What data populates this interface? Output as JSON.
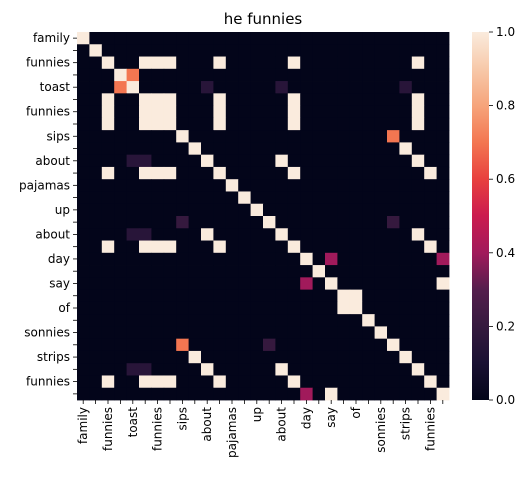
{
  "chart_data": {
    "type": "heatmap",
    "title": "he funnies",
    "row_labels": [
      "family",
      "",
      "funnies",
      "",
      "toast",
      "",
      "funnies",
      "",
      "sips",
      "",
      "about",
      "",
      "pajamas",
      "",
      "up",
      "",
      "about",
      "",
      "day",
      "",
      "say",
      "",
      "of",
      "",
      "sonnies",
      "",
      "strips",
      "",
      "funnies",
      ""
    ],
    "col_labels": [
      "family",
      "",
      "funnies",
      "",
      "toast",
      "",
      "funnies",
      "",
      "sips",
      "",
      "about",
      "",
      "pajamas",
      "",
      "up",
      "",
      "about",
      "",
      "day",
      "",
      "say",
      "",
      "of",
      "",
      "sonnies",
      "",
      "strips",
      "",
      "funnies",
      ""
    ],
    "colorbar": {
      "ticks": [
        0.0,
        0.2,
        0.4,
        0.6,
        0.8,
        1.0
      ],
      "tick_labels": [
        "0.0",
        "0.2",
        "0.4",
        "0.6",
        "0.8",
        "1.0"
      ],
      "range": [
        0,
        1
      ]
    },
    "matrix": [
      [
        1,
        0,
        0,
        0,
        0,
        0,
        0,
        0,
        0,
        0,
        0,
        0,
        0,
        0,
        0,
        0,
        0,
        0,
        0,
        0,
        0,
        0,
        0,
        0,
        0,
        0,
        0,
        0,
        0,
        0
      ],
      [
        0,
        1,
        0,
        0,
        0,
        0,
        0,
        0,
        0,
        0,
        0,
        0,
        0,
        0,
        0,
        0,
        0,
        0,
        0,
        0,
        0,
        0,
        0,
        0,
        0,
        0,
        0,
        0,
        0,
        0
      ],
      [
        0,
        0,
        1,
        0,
        0,
        1,
        1,
        1,
        0,
        0,
        0,
        1,
        0,
        0,
        0,
        0,
        0,
        1,
        0,
        0,
        0,
        0,
        0,
        0,
        0,
        0,
        0,
        1,
        0,
        0
      ],
      [
        0,
        0,
        0,
        1,
        0.7,
        0,
        0,
        0,
        0,
        0,
        0,
        0,
        0,
        0,
        0,
        0,
        0,
        0,
        0,
        0,
        0,
        0,
        0,
        0,
        0,
        0,
        0,
        0,
        0,
        0
      ],
      [
        0,
        0,
        0,
        0.7,
        1,
        0,
        0,
        0,
        0,
        0,
        0.15,
        0,
        0,
        0,
        0,
        0,
        0.15,
        0,
        0,
        0,
        0,
        0,
        0,
        0,
        0,
        0,
        0.15,
        0,
        0,
        0
      ],
      [
        0,
        0,
        1,
        0,
        0,
        1,
        1,
        1,
        0,
        0,
        0,
        1,
        0,
        0,
        0,
        0,
        0,
        1,
        0,
        0,
        0,
        0,
        0,
        0,
        0,
        0,
        0,
        1,
        0,
        0
      ],
      [
        0,
        0,
        1,
        0,
        0,
        1,
        1,
        1,
        0,
        0,
        0,
        1,
        0,
        0,
        0,
        0,
        0,
        1,
        0,
        0,
        0,
        0,
        0,
        0,
        0,
        0,
        0,
        1,
        0,
        0
      ],
      [
        0,
        0,
        1,
        0,
        0,
        1,
        1,
        1,
        0,
        0,
        0,
        1,
        0,
        0,
        0,
        0,
        0,
        1,
        0,
        0,
        0,
        0,
        0,
        0,
        0,
        0,
        0,
        1,
        0,
        0
      ],
      [
        0,
        0,
        0,
        0,
        0,
        0,
        0,
        0,
        1,
        0,
        0,
        0,
        0,
        0,
        0,
        0,
        0,
        0,
        0,
        0,
        0,
        0,
        0,
        0,
        0,
        0.7,
        0,
        0,
        0,
        0
      ],
      [
        0,
        0,
        0,
        0,
        0,
        0,
        0,
        0,
        0,
        1,
        0,
        0,
        0,
        0,
        0,
        0,
        0,
        0,
        0,
        0,
        0,
        0,
        0,
        0,
        0,
        0,
        1,
        0,
        0,
        0
      ],
      [
        0,
        0,
        0,
        0,
        0.15,
        0.15,
        0,
        0,
        0,
        0,
        1,
        0,
        0,
        0,
        0,
        0,
        1,
        0,
        0,
        0,
        0,
        0,
        0,
        0,
        0,
        0,
        0,
        1,
        0,
        0
      ],
      [
        0,
        0,
        1,
        0,
        0,
        1,
        1,
        1,
        0,
        0,
        0,
        1,
        0,
        0,
        0,
        0,
        0,
        1,
        0,
        0,
        0,
        0,
        0,
        0,
        0,
        0,
        0,
        0,
        1,
        0
      ],
      [
        0,
        0,
        0,
        0,
        0,
        0,
        0,
        0,
        0,
        0,
        0,
        0,
        1,
        0,
        0,
        0,
        0,
        0,
        0,
        0,
        0,
        0,
        0,
        0,
        0,
        0,
        0,
        0,
        0,
        0
      ],
      [
        0,
        0,
        0,
        0,
        0,
        0,
        0,
        0,
        0,
        0,
        0,
        0,
        0,
        1,
        0,
        0,
        0,
        0,
        0,
        0,
        0,
        0,
        0,
        0,
        0,
        0,
        0,
        0,
        0,
        0
      ],
      [
        0,
        0,
        0,
        0,
        0,
        0,
        0,
        0,
        0,
        0,
        0,
        0,
        0,
        0,
        1,
        0,
        0,
        0,
        0,
        0,
        0,
        0,
        0,
        0,
        0,
        0,
        0,
        0,
        0,
        0
      ],
      [
        0,
        0,
        0,
        0,
        0,
        0,
        0,
        0,
        0.2,
        0,
        0,
        0,
        0,
        0,
        0,
        1,
        0,
        0,
        0,
        0,
        0,
        0,
        0,
        0,
        0,
        0.2,
        0,
        0,
        0,
        0
      ],
      [
        0,
        0,
        0,
        0,
        0.15,
        0.15,
        0,
        0,
        0,
        0,
        1,
        0,
        0,
        0,
        0,
        0,
        1,
        0,
        0,
        0,
        0,
        0,
        0,
        0,
        0,
        0,
        0,
        1,
        0,
        0
      ],
      [
        0,
        0,
        1,
        0,
        0,
        1,
        1,
        1,
        0,
        0,
        0,
        1,
        0,
        0,
        0,
        0,
        0,
        1,
        0,
        0,
        0,
        0,
        0,
        0,
        0,
        0,
        0,
        0,
        1,
        0
      ],
      [
        0,
        0,
        0,
        0,
        0,
        0,
        0,
        0,
        0,
        0,
        0,
        0,
        0,
        0,
        0,
        0,
        0,
        0,
        1,
        0,
        0.4,
        0,
        0,
        0,
        0,
        0,
        0,
        0,
        0,
        0.4
      ],
      [
        0,
        0,
        0,
        0,
        0,
        0,
        0,
        0,
        0,
        0,
        0,
        0,
        0,
        0,
        0,
        0,
        0,
        0,
        0,
        1,
        0,
        0,
        0,
        0,
        0,
        0,
        0,
        0,
        0,
        0
      ],
      [
        0,
        0,
        0,
        0,
        0,
        0,
        0,
        0,
        0,
        0,
        0,
        0,
        0,
        0,
        0,
        0,
        0,
        0,
        0.4,
        0,
        1,
        0,
        0,
        0,
        0,
        0,
        0,
        0,
        0,
        1
      ],
      [
        0,
        0,
        0,
        0,
        0,
        0,
        0,
        0,
        0,
        0,
        0,
        0,
        0,
        0,
        0,
        0,
        0,
        0,
        0,
        0,
        0,
        1,
        1,
        0,
        0,
        0,
        0,
        0,
        0,
        0
      ],
      [
        0,
        0,
        0,
        0,
        0,
        0,
        0,
        0,
        0,
        0,
        0,
        0,
        0,
        0,
        0,
        0,
        0,
        0,
        0,
        0,
        0,
        1,
        1,
        0,
        0,
        0,
        0,
        0,
        0,
        0
      ],
      [
        0,
        0,
        0,
        0,
        0,
        0,
        0,
        0,
        0,
        0,
        0,
        0,
        0,
        0,
        0,
        0,
        0,
        0,
        0,
        0,
        0,
        0,
        0,
        1,
        0,
        0,
        0,
        0,
        0,
        0
      ],
      [
        0,
        0,
        0,
        0,
        0,
        0,
        0,
        0,
        0,
        0,
        0,
        0,
        0,
        0,
        0,
        0,
        0,
        0,
        0,
        0,
        0,
        0,
        0,
        0,
        1,
        0,
        0,
        0,
        0,
        0
      ],
      [
        0,
        0,
        0,
        0,
        0,
        0,
        0,
        0,
        0.7,
        0,
        0,
        0,
        0,
        0,
        0,
        0.2,
        0,
        0,
        0,
        0,
        0,
        0,
        0,
        0,
        0,
        1,
        0,
        0,
        0,
        0
      ],
      [
        0,
        0,
        0,
        0,
        0,
        0,
        0,
        0,
        0,
        1,
        0,
        0,
        0,
        0,
        0,
        0,
        0,
        0,
        0,
        0,
        0,
        0,
        0,
        0,
        0,
        0,
        1,
        0,
        0,
        0
      ],
      [
        0,
        0,
        0,
        0,
        0.15,
        0.15,
        0,
        0,
        0,
        0,
        1,
        0,
        0,
        0,
        0,
        0,
        1,
        0,
        0,
        0,
        0,
        0,
        0,
        0,
        0,
        0,
        0,
        1,
        0,
        0
      ],
      [
        0,
        0,
        1,
        0,
        0,
        1,
        1,
        1,
        0,
        0,
        0,
        1,
        0,
        0,
        0,
        0,
        0,
        1,
        0,
        0,
        0,
        0,
        0,
        0,
        0,
        0,
        0,
        0,
        1,
        0
      ],
      [
        0,
        0,
        0,
        0,
        0,
        0,
        0,
        0,
        0,
        0,
        0,
        0,
        0,
        0,
        0,
        0,
        0,
        0,
        0.4,
        0,
        1,
        0,
        0,
        0,
        0,
        0,
        0,
        0,
        0,
        1
      ]
    ]
  }
}
